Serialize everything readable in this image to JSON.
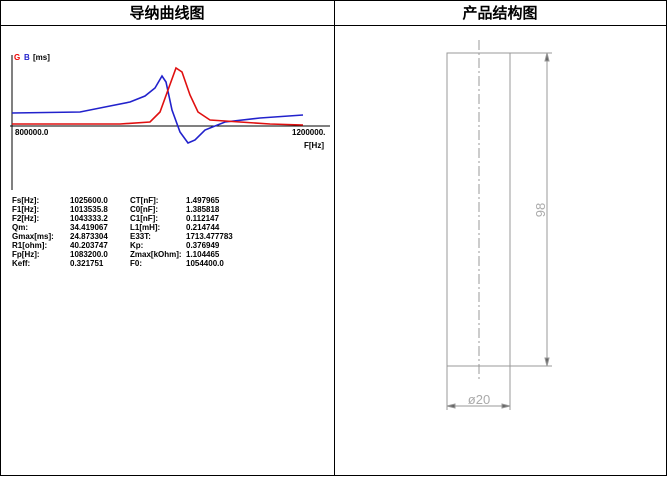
{
  "header": [
    "导纳曲线图",
    "产品结构图"
  ],
  "admittance": {
    "legend_g": "G",
    "legend_b": "B",
    "unit": "[ms]",
    "x_start": "800000.0",
    "x_end": "1200000.",
    "x_label": "F[Hz]",
    "params": [
      [
        "Fs[Hz]:",
        "1025600.0",
        "CT[nF]:",
        "1.497965"
      ],
      [
        "F1[Hz]:",
        "1013535.8",
        "C0[nF]:",
        "1.385818"
      ],
      [
        "F2[Hz]:",
        "1043333.2",
        "C1[nF]:",
        "0.112147"
      ],
      [
        "Qm:",
        "34.419067",
        "L1[mH]:",
        "0.214744"
      ],
      [
        "Gmax[ms]:",
        "24.873304",
        "E33T:",
        "1713.477783"
      ],
      [
        "R1[ohm]:",
        "40.203747",
        "Kp:",
        "0.376949"
      ],
      [
        "Fp[Hz]:",
        "1083200.0",
        "Zmax[kOhm]:",
        "1.104465"
      ],
      [
        "Keff:",
        "0.321751",
        "F0:",
        "1054400.0"
      ]
    ]
  },
  "structure": {
    "length": "98",
    "diameter": "ø20"
  }
}
